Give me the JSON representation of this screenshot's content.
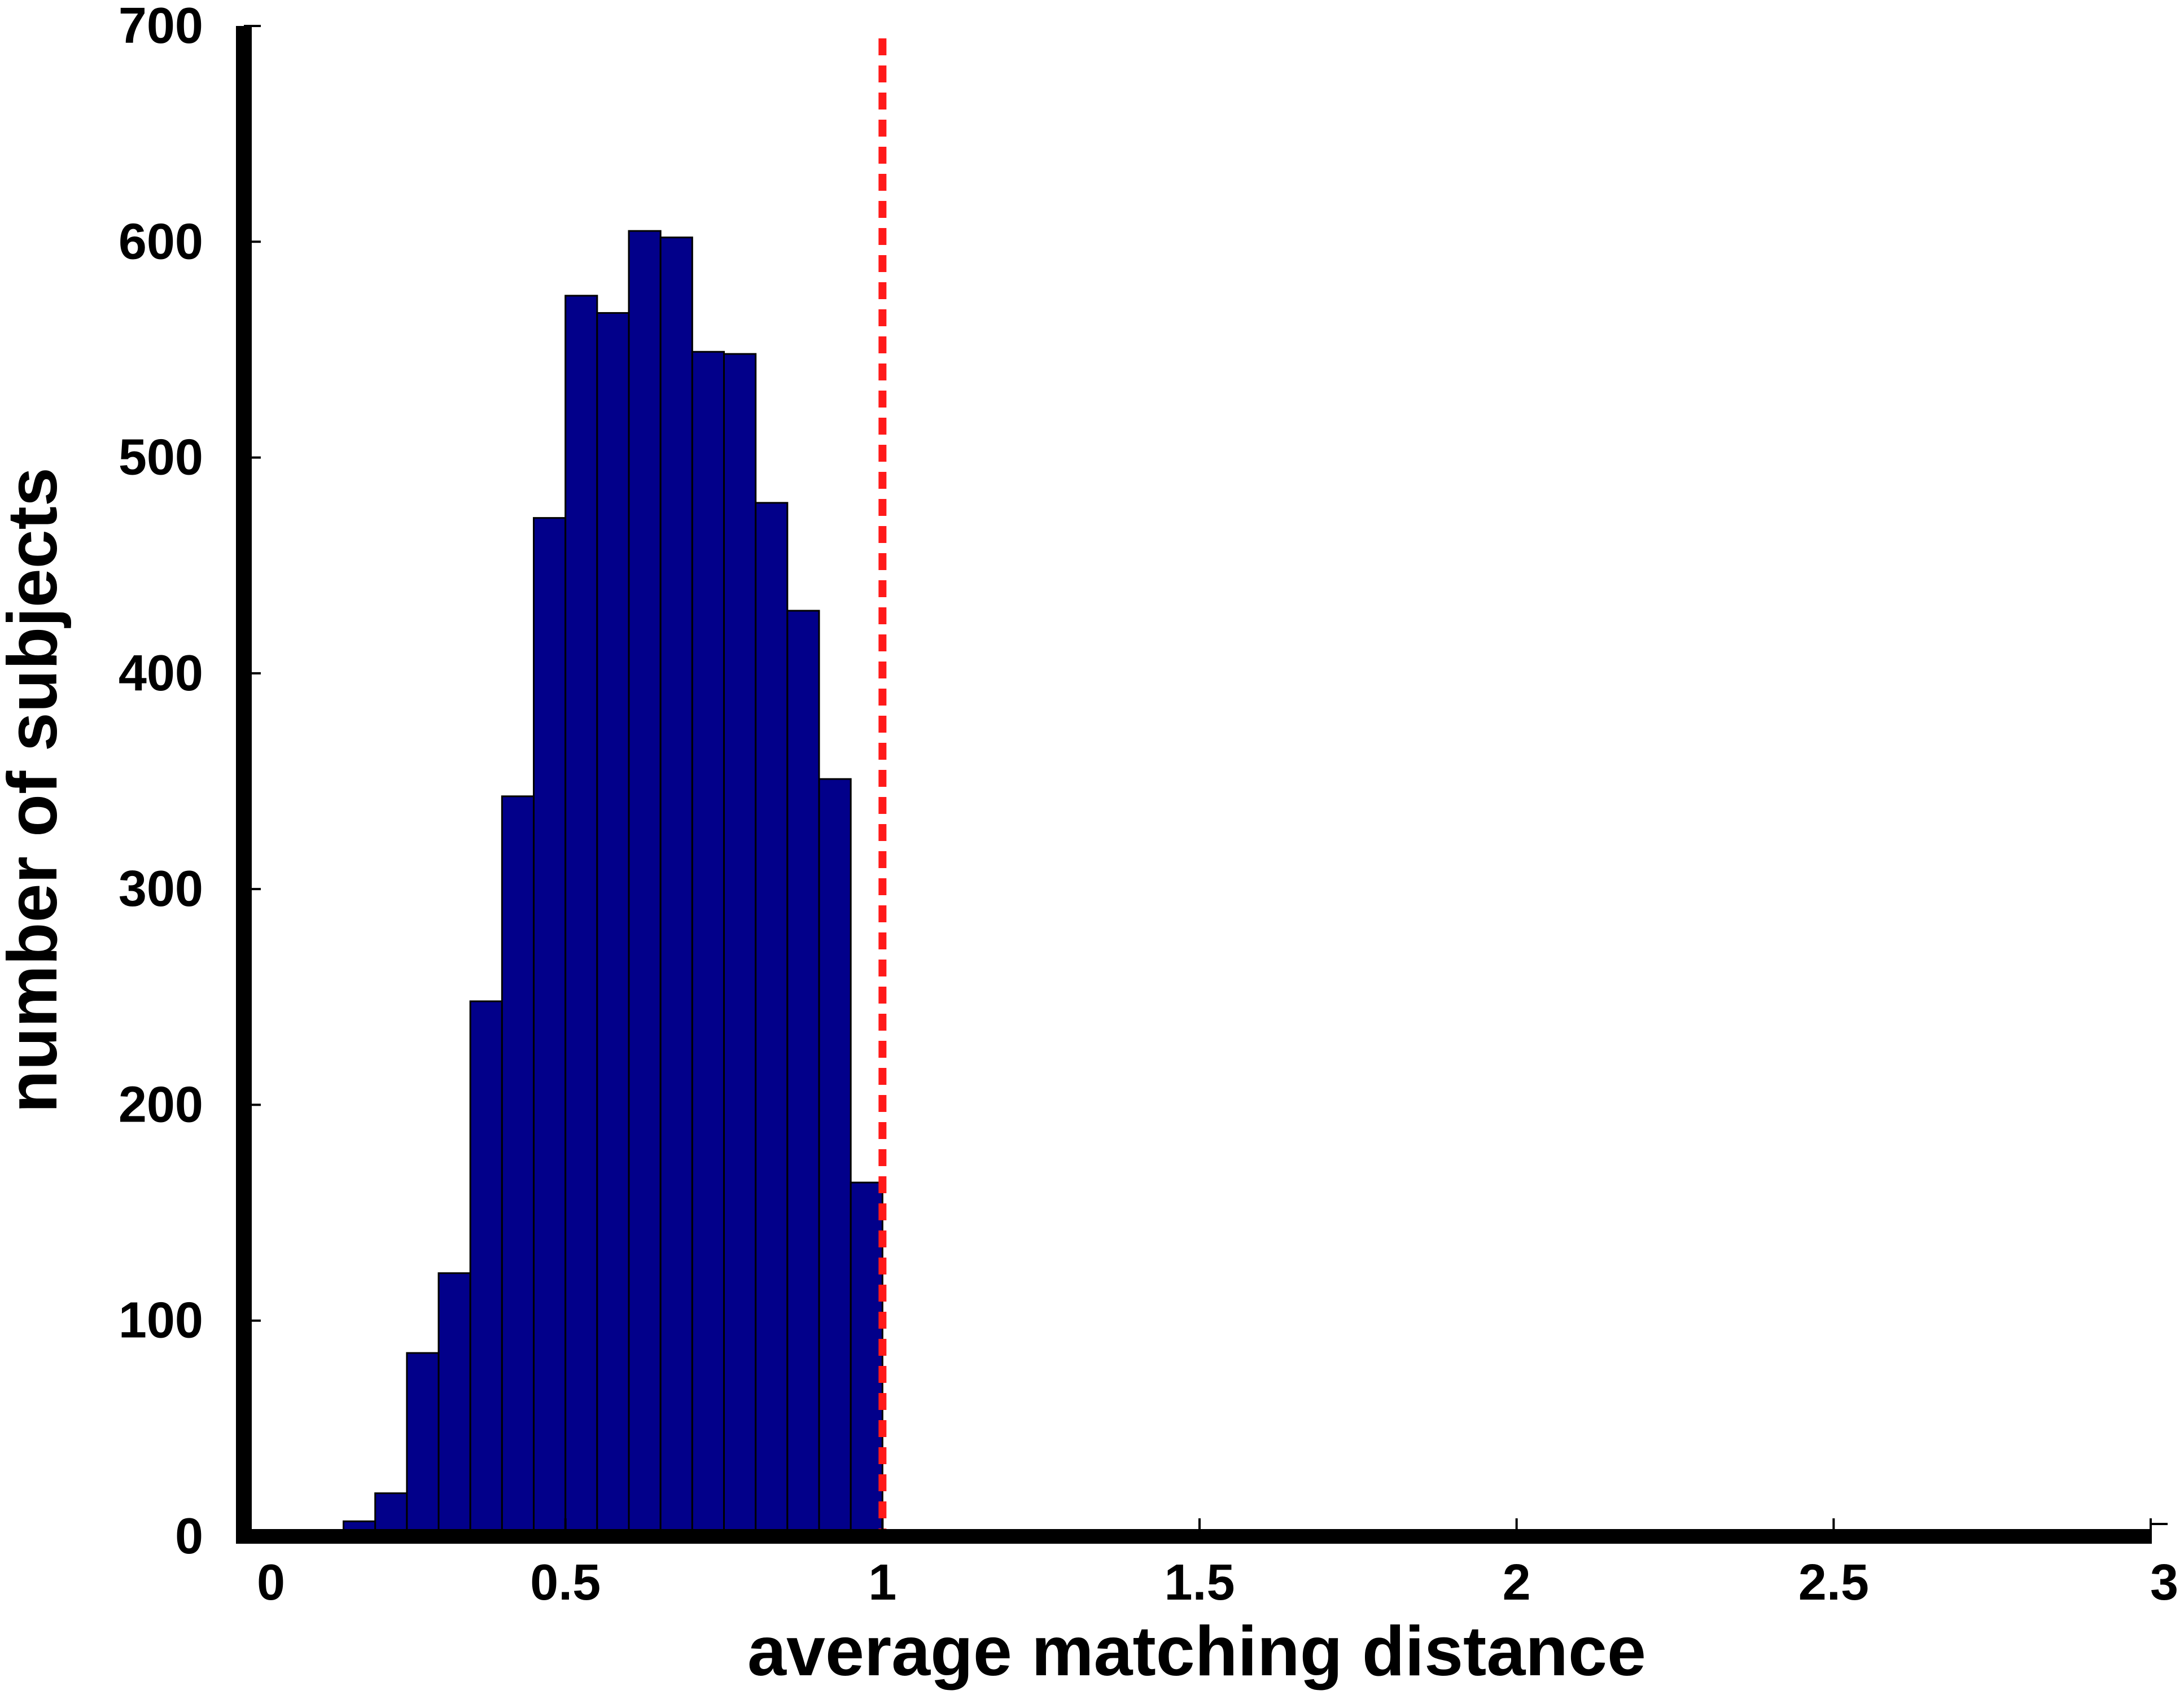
{
  "chart_data": {
    "type": "bar",
    "title": "",
    "xlabel": "average matching distance",
    "ylabel": "number of subjects",
    "xlim": [
      0,
      3
    ],
    "ylim": [
      0,
      700
    ],
    "x_ticks": [
      "0",
      "0.5",
      "1",
      "1.5",
      "2",
      "2.5",
      "3"
    ],
    "y_ticks": [
      "0",
      "100",
      "200",
      "300",
      "400",
      "500",
      "600",
      "700"
    ],
    "bin_width": 0.05,
    "bins": [
      {
        "x0": 0.15,
        "value": 7
      },
      {
        "x0": 0.2,
        "value": 20
      },
      {
        "x0": 0.25,
        "value": 85
      },
      {
        "x0": 0.3,
        "value": 122
      },
      {
        "x0": 0.35,
        "value": 248
      },
      {
        "x0": 0.4,
        "value": 343
      },
      {
        "x0": 0.45,
        "value": 472
      },
      {
        "x0": 0.5,
        "value": 575
      },
      {
        "x0": 0.55,
        "value": 567
      },
      {
        "x0": 0.6,
        "value": 605
      },
      {
        "x0": 0.65,
        "value": 602
      },
      {
        "x0": 0.7,
        "value": 549
      },
      {
        "x0": 0.75,
        "value": 548
      },
      {
        "x0": 0.8,
        "value": 479
      },
      {
        "x0": 0.85,
        "value": 429
      },
      {
        "x0": 0.9,
        "value": 351
      },
      {
        "x0": 0.95,
        "value": 164
      }
    ],
    "bar_color": "#02008a",
    "threshold_line": {
      "x": 1,
      "style": "dashed",
      "color": "#ff1a1a"
    },
    "grid": false
  }
}
